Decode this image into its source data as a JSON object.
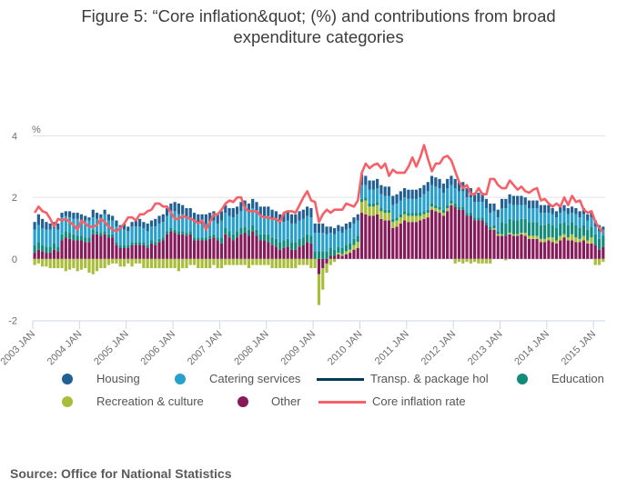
{
  "title_lines": [
    "Figure 5: “Core inflation&quot; (%) and contributions from broad",
    "expenditure categories"
  ],
  "source": "Source: Office for National Statistics",
  "chart_data": {
    "type": "bar",
    "stacked": true,
    "title": "Figure 5: “Core inflation&quot; (%) and contributions from broad expenditure categories",
    "xlabel": "",
    "ylabel": "%",
    "ylim": [
      -2,
      4
    ],
    "yticks": [
      4,
      2,
      0,
      -2
    ],
    "xticks": [
      "2003 JAN",
      "2004 JAN",
      "2005 JAN",
      "2006 JAN",
      "2007 JAN",
      "2008 JAN",
      "2009 JAN",
      "2010 JAN",
      "2011 JAN",
      "2012 JAN",
      "2013 JAN",
      "2014 JAN",
      "2015 JAN"
    ],
    "x_range": [
      "2003 JAN",
      "2015 MAR"
    ],
    "grid": true,
    "legend_position": "bottom",
    "colors": {
      "housing": "#206095",
      "catering": "#27a0cc",
      "transport": "#003c57",
      "education": "#118c7b",
      "recreation": "#a8bd3a",
      "other": "#871a5b",
      "core": "#f66068"
    },
    "legend": [
      {
        "key": "housing",
        "label": "Housing",
        "kind": "dot"
      },
      {
        "key": "catering",
        "label": "Catering services",
        "kind": "dot"
      },
      {
        "key": "transport",
        "label": "Transp. & package hol",
        "kind": "line"
      },
      {
        "key": "education",
        "label": "Education",
        "kind": "dot"
      },
      {
        "key": "recreation",
        "label": "Recreation & culture",
        "kind": "dot"
      },
      {
        "key": "other",
        "label": "Other",
        "kind": "dot"
      },
      {
        "key": "core",
        "label": "Core inflation rate",
        "kind": "line"
      }
    ],
    "yearly_series": {
      "other": [
        [
          0.2,
          0.3,
          0.25,
          0.2,
          0.2,
          0.3,
          0.25,
          0.6,
          0.7,
          0.65,
          0.6,
          0.6
        ],
        [
          0.6,
          0.55,
          0.55,
          0.8,
          0.8,
          0.75,
          0.8,
          0.7,
          0.7,
          0.45,
          0.35,
          0.35
        ],
        [
          0.35,
          0.45,
          0.45,
          0.45,
          0.45,
          0.35,
          0.5,
          0.45,
          0.55,
          0.6,
          0.8,
          0.9
        ],
        [
          0.85,
          0.8,
          0.8,
          0.75,
          0.8,
          0.6,
          0.6,
          0.6,
          0.6,
          0.65,
          0.7,
          0.6
        ],
        [
          0.5,
          0.8,
          0.7,
          0.6,
          0.7,
          0.8,
          0.85,
          0.75,
          0.9,
          0.75,
          0.6,
          0.6
        ],
        [
          0.55,
          0.45,
          0.4,
          0.3,
          0.35,
          0.4,
          0.3,
          0.3,
          0.4,
          0.45,
          0.55,
          0.5
        ],
        [
          0.0,
          -0.5,
          -0.3,
          -0.15,
          0.1,
          0.1,
          0.15,
          0.1,
          0.15,
          0.2,
          0.3,
          0.35
        ],
        [
          1.5,
          1.45,
          1.4,
          1.4,
          1.45,
          1.3,
          1.25,
          1.25,
          1.0,
          1.05,
          1.15,
          1.25
        ],
        [
          1.2,
          1.2,
          1.2,
          1.25,
          1.3,
          1.35,
          1.6,
          1.55,
          1.5,
          1.4,
          1.55,
          1.75
        ],
        [
          1.7,
          1.6,
          1.6,
          1.4,
          1.4,
          1.25,
          1.25,
          1.25,
          1.1,
          0.95,
          0.95,
          0.75
        ],
        [
          0.75,
          0.75,
          0.8,
          0.75,
          0.75,
          0.8,
          0.75,
          0.65,
          0.65,
          0.65,
          0.55,
          0.55
        ],
        [
          0.6,
          0.55,
          0.5,
          0.6,
          0.7,
          0.6,
          0.6,
          0.55,
          0.55,
          0.6,
          0.5,
          0.5
        ],
        [
          0.45,
          0.3,
          0.4
        ]
      ],
      "education": [
        [
          0.25,
          0.25,
          0.2,
          0.2,
          0.2,
          0.2,
          0.15,
          0.2,
          0.2,
          0.2,
          0.2,
          0.15
        ],
        [
          0.15,
          0.15,
          0.15,
          0.15,
          0.1,
          0.1,
          0.1,
          0.1,
          0.1,
          0.1,
          0.1,
          0.1
        ],
        [
          0.1,
          0.1,
          0.1,
          0.1,
          0.1,
          0.1,
          0.1,
          0.1,
          0.1,
          0.1,
          0.1,
          0.1
        ],
        [
          0.1,
          0.1,
          0.1,
          0.1,
          0.1,
          0.1,
          0.1,
          0.1,
          0.1,
          0.1,
          0.1,
          0.1
        ],
        [
          0.2,
          0.2,
          0.2,
          0.2,
          0.2,
          0.2,
          0.2,
          0.2,
          0.2,
          0.2,
          0.2,
          0.2
        ],
        [
          0.25,
          0.25,
          0.25,
          0.25,
          0.25,
          0.25,
          0.25,
          0.25,
          0.25,
          0.25,
          0.25,
          0.25
        ],
        [
          0.25,
          0.25,
          0.25,
          0.25,
          0.25,
          0.2,
          0.2,
          0.2,
          0.2,
          0.2,
          0.2,
          0.2
        ],
        [
          0.1,
          0.1,
          0.1,
          0.1,
          0.1,
          0.1,
          0.1,
          0.1,
          0.1,
          0.1,
          0.1,
          0.1
        ],
        [
          0.1,
          0.1,
          0.1,
          0.1,
          0.1,
          0.1,
          0.1,
          0.1,
          0.1,
          0.1,
          0.1,
          0.1
        ],
        [
          0.1,
          0.1,
          0.1,
          0.1,
          0.1,
          0.1,
          0.1,
          0.1,
          0.1,
          0.1,
          0.1,
          0.1
        ],
        [
          0.4,
          0.4,
          0.45,
          0.45,
          0.45,
          0.45,
          0.45,
          0.45,
          0.45,
          0.45,
          0.45,
          0.45
        ],
        [
          0.45,
          0.4,
          0.4,
          0.4,
          0.4,
          0.4,
          0.4,
          0.4,
          0.35,
          0.35,
          0.35,
          0.35
        ],
        [
          0.35,
          0.35,
          0.35
        ]
      ],
      "recreation": [
        [
          -0.2,
          -0.15,
          -0.25,
          -0.25,
          -0.3,
          -0.3,
          -0.3,
          -0.3,
          -0.4,
          -0.35,
          -0.3,
          -0.4
        ],
        [
          -0.35,
          -0.3,
          -0.45,
          -0.5,
          -0.4,
          -0.3,
          -0.3,
          -0.2,
          -0.15,
          -0.15,
          -0.25,
          -0.25
        ],
        [
          -0.15,
          -0.25,
          -0.15,
          -0.15,
          -0.3,
          -0.3,
          -0.3,
          -0.3,
          -0.3,
          -0.3,
          -0.3,
          -0.3
        ],
        [
          -0.3,
          -0.4,
          -0.3,
          -0.3,
          -0.2,
          -0.2,
          -0.3,
          -0.3,
          -0.3,
          -0.3,
          -0.2,
          -0.3
        ],
        [
          -0.3,
          -0.2,
          -0.2,
          -0.2,
          -0.2,
          -0.2,
          -0.2,
          -0.3,
          -0.2,
          -0.2,
          -0.2,
          -0.2
        ],
        [
          -0.2,
          -0.3,
          -0.3,
          -0.3,
          -0.3,
          -0.3,
          -0.3,
          -0.3,
          -0.2,
          -0.2,
          -0.2,
          -0.3
        ],
        [
          -0.3,
          -1.0,
          -0.7,
          -0.3,
          -0.2,
          -0.1,
          0.05,
          0.05,
          0.1,
          0.1,
          0.15,
          0.2
        ],
        [
          0.35,
          0.45,
          0.3,
          0.3,
          0.3,
          0.25,
          0.25,
          0.25,
          0.2,
          0.2,
          0.2,
          0.2
        ],
        [
          0.2,
          0.2,
          0.2,
          0.15,
          0.15,
          0.15,
          0.1,
          0.1,
          0.1,
          0.1,
          0.1,
          0.05
        ],
        [
          -0.15,
          -0.1,
          -0.15,
          -0.1,
          -0.15,
          -0.1,
          -0.15,
          -0.15,
          -0.15,
          -0.15,
          0.05,
          0.05
        ],
        [
          0.05,
          -0.05,
          0.05,
          0.05,
          0.05,
          0.05,
          0.1,
          0.1,
          0.1,
          0.1,
          0.1,
          0.1
        ],
        [
          0.1,
          0.15,
          0.1,
          0.15,
          0.1,
          0.1,
          0.2,
          0.15,
          0.1,
          0.15,
          0.1,
          0.2
        ],
        [
          -0.2,
          -0.2,
          -0.1
        ]
      ],
      "catering": [
        [
          0.5,
          0.55,
          0.55,
          0.55,
          0.55,
          0.5,
          0.55,
          0.55,
          0.5,
          0.5,
          0.5,
          0.55
        ],
        [
          0.5,
          0.55,
          0.55,
          0.4,
          0.4,
          0.4,
          0.55,
          0.45,
          0.45,
          0.5,
          0.5,
          0.5
        ],
        [
          0.45,
          0.5,
          0.5,
          0.5,
          0.45,
          0.45,
          0.45,
          0.5,
          0.5,
          0.5,
          0.5,
          0.55
        ],
        [
          0.6,
          0.55,
          0.55,
          0.5,
          0.45,
          0.5,
          0.45,
          0.45,
          0.45,
          0.45,
          0.45,
          0.45
        ],
        [
          0.55,
          0.5,
          0.5,
          0.55,
          0.55,
          0.55,
          0.55,
          0.55,
          0.55,
          0.6,
          0.6,
          0.6
        ],
        [
          0.6,
          0.6,
          0.6,
          0.6,
          0.6,
          0.6,
          0.6,
          0.6,
          0.6,
          0.6,
          0.6,
          0.6
        ],
        [
          0.6,
          0.6,
          0.6,
          0.55,
          0.5,
          0.5,
          0.5,
          0.5,
          0.5,
          0.5,
          0.5,
          0.5
        ],
        [
          0.45,
          0.4,
          0.45,
          0.45,
          0.45,
          0.45,
          0.45,
          0.45,
          0.45,
          0.45,
          0.45,
          0.45
        ],
        [
          0.45,
          0.45,
          0.45,
          0.5,
          0.55,
          0.6,
          0.6,
          0.6,
          0.6,
          0.55,
          0.55,
          0.5
        ],
        [
          0.5,
          0.5,
          0.5,
          0.5,
          0.5,
          0.5,
          0.5,
          0.5,
          0.45,
          0.45,
          0.45,
          0.45
        ],
        [
          0.45,
          0.5,
          0.5,
          0.5,
          0.5,
          0.45,
          0.45,
          0.45,
          0.45,
          0.45,
          0.4,
          0.4
        ],
        [
          0.35,
          0.35,
          0.35,
          0.35,
          0.35,
          0.35,
          0.3,
          0.35,
          0.35,
          0.35,
          0.3,
          0.3
        ],
        [
          0.25,
          0.25,
          0.2
        ]
      ],
      "housing": [
        [
          0.25,
          0.35,
          0.3,
          0.25,
          0.2,
          0.2,
          0.2,
          0.15,
          0.15,
          0.2,
          0.2,
          0.2
        ],
        [
          0.2,
          0.15,
          0.1,
          0.25,
          0.2,
          0.2,
          0.15,
          0.2,
          0.15,
          0.2,
          0.15,
          0.2
        ],
        [
          0.15,
          0.15,
          0.2,
          0.25,
          0.2,
          0.25,
          0.2,
          0.25,
          0.25,
          0.25,
          0.25,
          0.25
        ],
        [
          0.3,
          0.35,
          0.3,
          0.3,
          0.3,
          0.3,
          0.3,
          0.3,
          0.3,
          0.3,
          0.3,
          0.3
        ],
        [
          0.3,
          0.25,
          0.25,
          0.3,
          0.25,
          0.3,
          0.3,
          0.3,
          0.3,
          0.3,
          0.3,
          0.3
        ],
        [
          0.3,
          0.3,
          0.3,
          0.3,
          0.3,
          0.3,
          0.3,
          0.3,
          0.3,
          0.3,
          0.3,
          0.3
        ],
        [
          0.3,
          0.3,
          0.3,
          0.25,
          0.2,
          0.2,
          0.2,
          0.2,
          0.2,
          0.2,
          0.2,
          0.2
        ],
        [
          0.35,
          0.3,
          0.3,
          0.3,
          0.3,
          0.3,
          0.3,
          0.3,
          0.3,
          0.3,
          0.3,
          0.3
        ],
        [
          0.3,
          0.3,
          0.3,
          0.3,
          0.3,
          0.3,
          0.3,
          0.3,
          0.3,
          0.3,
          0.3,
          0.3
        ],
        [
          0.3,
          0.3,
          0.3,
          0.3,
          0.3,
          0.3,
          0.3,
          0.3,
          0.3,
          0.3,
          0.25,
          0.25
        ],
        [
          0.3,
          0.3,
          0.3,
          0.3,
          0.3,
          0.3,
          0.25,
          0.25,
          0.25,
          0.25,
          0.25,
          0.25
        ],
        [
          0.25,
          0.2,
          0.2,
          0.2,
          0.2,
          0.2,
          0.2,
          0.2,
          0.2,
          0.2,
          0.2,
          0.2
        ],
        [
          0.2,
          0.2,
          0.1
        ]
      ],
      "transport": [
        [
          0,
          0,
          0,
          0,
          0,
          0,
          0,
          0,
          0,
          0,
          0,
          0
        ],
        [
          0,
          0,
          0,
          0,
          0,
          0,
          0,
          0,
          0,
          0,
          0,
          0
        ],
        [
          0,
          0,
          0,
          0,
          0,
          0,
          0,
          0,
          0,
          0,
          0,
          0
        ],
        [
          0,
          0,
          0,
          0,
          0,
          0,
          0,
          0,
          0,
          0,
          0,
          0
        ],
        [
          0,
          0,
          0,
          0,
          0,
          0,
          0,
          0,
          0,
          0,
          0,
          0
        ],
        [
          0,
          0,
          0,
          0,
          0,
          0,
          0,
          0,
          0,
          0,
          0,
          0
        ],
        [
          0,
          0,
          0,
          0,
          0,
          0,
          0,
          0,
          0,
          0,
          0,
          0
        ],
        [
          0,
          0,
          0,
          0,
          0,
          0,
          0,
          0,
          0,
          0,
          0,
          0
        ],
        [
          0,
          0,
          0,
          0,
          0,
          0,
          0,
          0,
          0,
          0,
          0,
          0
        ],
        [
          0,
          0,
          0,
          0,
          0,
          0,
          0,
          0,
          0,
          0,
          0,
          0
        ],
        [
          0,
          0,
          0,
          0,
          0,
          0,
          0,
          0,
          0,
          0,
          0,
          0
        ],
        [
          0,
          0,
          0,
          0,
          0,
          0,
          0,
          0,
          0,
          0,
          0,
          0
        ],
        [
          0,
          0,
          0
        ]
      ],
      "core": [
        [
          1.5,
          1.7,
          1.55,
          1.5,
          1.3,
          1.05,
          1.3,
          1.25,
          1.3,
          1.2,
          1.1,
          0.95
        ],
        [
          1.25,
          1.15,
          1.05,
          1.05,
          1.1,
          1.3,
          1.2,
          1.05,
          0.95,
          0.9,
          1.0,
          1.15
        ],
        [
          1.35,
          1.35,
          1.25,
          1.45,
          1.45,
          1.55,
          1.6,
          1.8,
          1.8,
          1.7,
          1.7,
          1.5
        ],
        [
          1.3,
          1.3,
          1.4,
          1.35,
          1.3,
          1.25,
          1.15,
          1.25,
          0.95,
          1.2,
          1.45,
          1.45
        ],
        [
          1.6,
          1.8,
          1.9,
          1.85,
          2.0,
          2.0,
          1.65,
          1.55,
          1.55,
          1.55,
          1.4,
          1.35
        ],
        [
          1.35,
          1.3,
          1.3,
          1.2,
          1.5,
          1.55,
          1.55,
          1.5,
          1.75,
          2.0,
          2.2,
          1.9
        ],
        [
          1.85,
          1.2,
          1.45,
          1.6,
          1.5,
          1.6,
          1.6,
          1.6,
          1.8,
          1.75,
          1.7,
          1.9
        ],
        [
          2.8,
          3.1,
          2.95,
          3.05,
          3.1,
          2.95,
          3.1,
          2.7,
          2.9,
          2.8,
          2.8,
          2.8
        ],
        [
          3.0,
          3.3,
          3.0,
          3.3,
          3.7,
          3.25,
          2.85,
          3.1,
          3.1,
          3.3,
          3.35,
          3.2
        ],
        [
          2.85,
          2.5,
          2.3,
          2.4,
          2.1,
          2.1,
          2.3,
          2.1,
          2.1,
          2.6,
          2.6,
          2.4
        ],
        [
          2.3,
          2.3,
          2.55,
          2.4,
          2.25,
          2.35,
          2.2,
          2.15,
          2.25,
          2.3,
          1.9,
          1.95
        ],
        [
          1.8,
          1.7,
          1.8,
          1.7,
          2.0,
          1.75,
          2.05,
          1.85,
          1.9,
          1.6,
          1.5,
          1.55
        ],
        [
          1.2,
          1.0,
          0.85
        ]
      ]
    }
  }
}
